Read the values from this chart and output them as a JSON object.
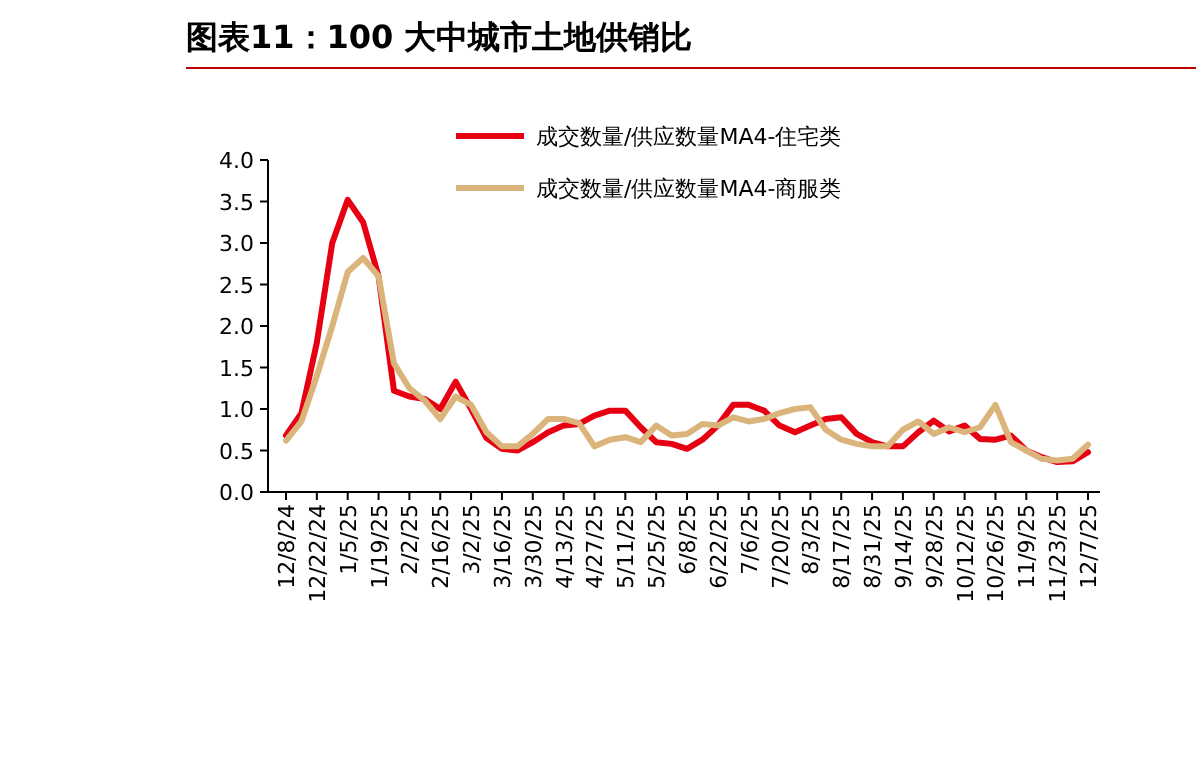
{
  "chart_data": {
    "type": "line",
    "title": "图表11：100 大中城市土地供销比",
    "categories": [
      "12/8/24",
      null,
      "12/22/24",
      null,
      "1/5/25",
      null,
      "1/19/25",
      null,
      "2/2/25",
      null,
      "2/16/25",
      null,
      "3/2/25",
      null,
      "3/16/25",
      null,
      "3/30/25",
      null,
      "4/13/25",
      null,
      "4/27/25",
      null,
      "5/11/25",
      null,
      "5/25/25",
      null,
      "6/8/25",
      null,
      "6/22/25",
      null,
      "7/6/25",
      null,
      "7/20/25",
      null,
      "8/3/25",
      null,
      "8/17/25",
      null,
      "8/31/25",
      null,
      "9/14/25",
      null,
      "9/28/25",
      null,
      "10/12/25",
      null,
      "10/26/25",
      null,
      "11/9/25",
      null,
      "11/23/25",
      null,
      "12/7/25"
    ],
    "series": [
      {
        "name": "成交数量/供应数量MA4-住宅类",
        "color": "#e60012",
        "values": [
          0.68,
          0.95,
          1.8,
          3.0,
          3.52,
          3.25,
          2.6,
          1.22,
          1.15,
          1.12,
          1.0,
          1.33,
          1.0,
          0.65,
          0.52,
          0.5,
          0.6,
          0.72,
          0.8,
          0.82,
          0.92,
          0.98,
          0.98,
          0.78,
          0.6,
          0.58,
          0.52,
          0.63,
          0.8,
          1.05,
          1.05,
          0.98,
          0.8,
          0.72,
          0.8,
          0.88,
          0.9,
          0.7,
          0.6,
          0.55,
          0.55,
          0.72,
          0.86,
          0.73,
          0.8,
          0.64,
          0.63,
          0.68,
          0.5,
          0.42,
          0.36,
          0.37,
          0.48
        ]
      },
      {
        "name": "成交数量/供应数量MA4-商服类",
        "color": "#dbb47c",
        "values": [
          0.62,
          0.85,
          1.4,
          2.0,
          2.65,
          2.82,
          2.6,
          1.55,
          1.25,
          1.1,
          0.88,
          1.15,
          1.05,
          0.72,
          0.55,
          0.55,
          0.7,
          0.88,
          0.88,
          0.83,
          0.55,
          0.63,
          0.66,
          0.6,
          0.8,
          0.68,
          0.7,
          0.82,
          0.8,
          0.9,
          0.85,
          0.88,
          0.95,
          1.0,
          1.02,
          0.75,
          0.63,
          0.58,
          0.55,
          0.55,
          0.75,
          0.85,
          0.7,
          0.78,
          0.72,
          0.78,
          1.05,
          0.6,
          0.5,
          0.4,
          0.38,
          0.4,
          0.57
        ]
      }
    ],
    "ylim": [
      0,
      4
    ],
    "yticks": [
      {
        "value": 0,
        "label": "0.0"
      },
      0.5,
      {
        "value": 1,
        "label": "1.0"
      },
      1.5,
      {
        "value": 2,
        "label": "2.0"
      },
      2.5,
      {
        "value": 3,
        "label": "3.0"
      },
      3.5,
      {
        "value": 4,
        "label": "4.0"
      }
    ],
    "legend": "top",
    "grid": false,
    "marker": "none",
    "line_style": "solid"
  }
}
